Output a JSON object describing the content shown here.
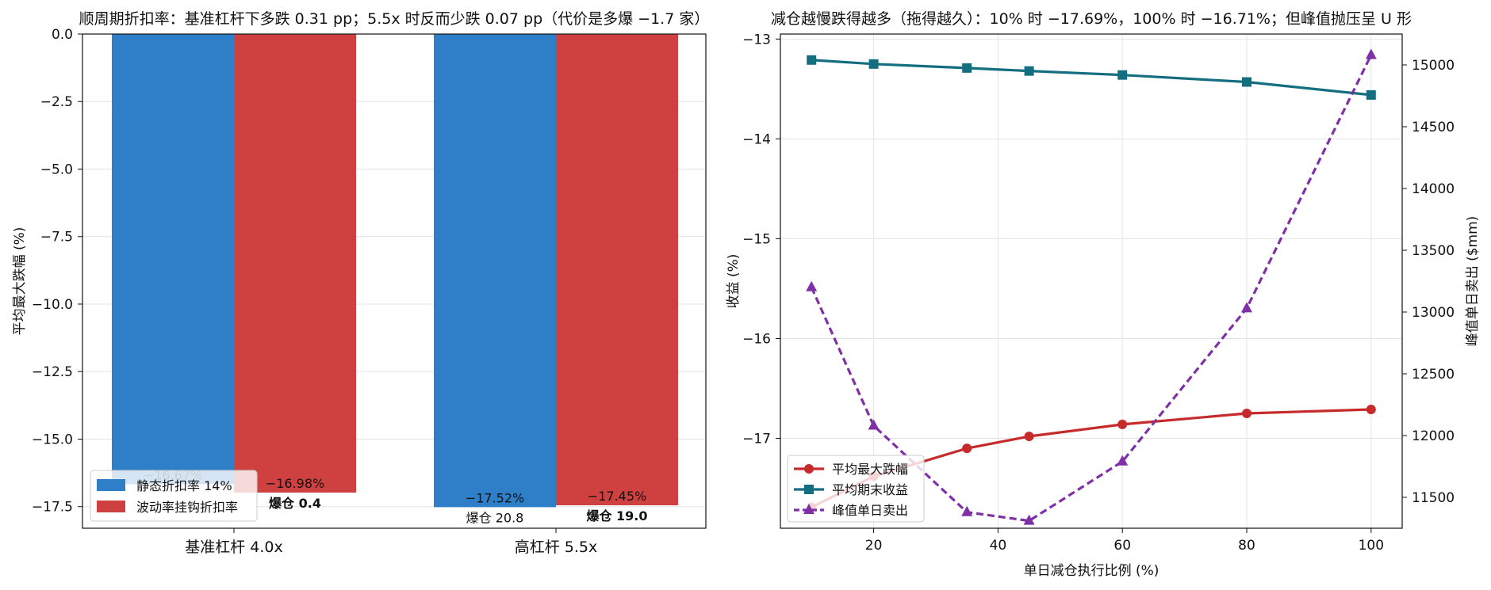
{
  "chart_data": [
    {
      "type": "bar",
      "title": "顺周期折扣率：基准杠杆下多跌 0.31 pp；5.5x 时反而少跌 0.07 pp（代价是多爆 −1.7 家）",
      "xlabel": "",
      "ylabel": "平均最大跌幅 (%)",
      "categories": [
        "基准杠杆 4.0x",
        "高杠杆 5.5x"
      ],
      "ylim": [
        -18.3,
        0
      ],
      "yticks": [
        "0.0",
        "−2.5",
        "−5.0",
        "−7.5",
        "−10.0",
        "−12.5",
        "−15.0",
        "−17.5"
      ],
      "grid": true,
      "legend_position": "lower-left",
      "series": [
        {
          "name": "静态折扣率 14%",
          "color": "#2f7fc8",
          "values": [
            -16.67,
            -17.52
          ],
          "value_labels": [
            "−16.67%",
            "−17.52%"
          ],
          "extra_labels": [
            "",
            "爆仓 20.8"
          ]
        },
        {
          "name": "波动率挂钩折扣率",
          "color": "#cf4040",
          "values": [
            -16.98,
            -17.45
          ],
          "value_labels": [
            "−16.98%",
            "−17.45%"
          ],
          "extra_labels": [
            "爆仓 0.4",
            "爆仓 19.0"
          ]
        }
      ]
    },
    {
      "type": "line",
      "title": "减仓越慢跌得越多（拖得越久）：10% 时 −17.69%，100% 时 −16.71%；但峰值抛压呈 U 形",
      "xlabel": "单日减仓执行比例 (%)",
      "ylabel": "收益 (%)",
      "ylabel_right": "峰值单日卖出 ($mm)",
      "x": [
        10,
        20,
        35,
        45,
        60,
        80,
        100
      ],
      "xlim": [
        5,
        105
      ],
      "ylim": [
        -17.9,
        -12.95
      ],
      "ylim_right": [
        11250,
        15250
      ],
      "xticks": [
        "20",
        "40",
        "60",
        "80",
        "100"
      ],
      "yticks": [
        "−13",
        "−14",
        "−15",
        "−16",
        "−17"
      ],
      "yticks_right": [
        "11500",
        "12000",
        "12500",
        "13000",
        "13500",
        "14000",
        "14500",
        "15000"
      ],
      "grid": true,
      "legend_position": "lower-left",
      "series": [
        {
          "name": "平均最大跌幅",
          "axis": "left",
          "color": "#c62a2a",
          "style": "solid",
          "marker": "circle",
          "values": [
            -17.69,
            -17.38,
            -17.1,
            -16.98,
            -16.86,
            -16.75,
            -16.71
          ]
        },
        {
          "name": "平均期末收益",
          "axis": "left",
          "color": "#136e80",
          "style": "solid",
          "marker": "square",
          "values": [
            -13.21,
            -13.25,
            -13.29,
            -13.32,
            -13.36,
            -13.43,
            -13.56
          ]
        },
        {
          "name": "峰值单日卖出",
          "axis": "right",
          "color": "#8030a6",
          "style": "dashed",
          "marker": "triangle",
          "values": [
            13200,
            12080,
            11380,
            11310,
            11790,
            13030,
            15080
          ]
        }
      ]
    }
  ]
}
